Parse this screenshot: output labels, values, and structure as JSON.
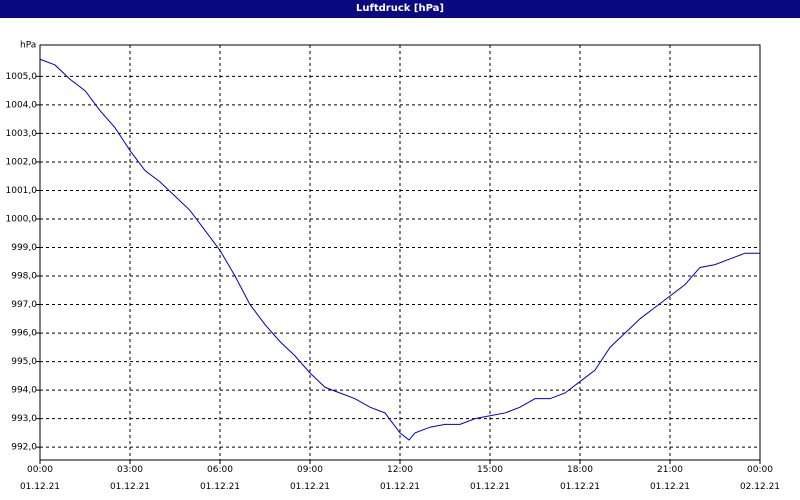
{
  "chart_data": {
    "type": "line",
    "title": "Luftdruck [hPa]",
    "y_label": "hPa",
    "x": [
      0,
      0.5,
      1,
      1.5,
      2,
      2.5,
      3,
      3.5,
      4,
      4.5,
      5,
      5.5,
      6,
      6.5,
      7,
      7.5,
      8,
      8.5,
      9,
      9.5,
      10,
      10.5,
      11,
      11.5,
      12,
      12.3,
      12.5,
      13,
      13.5,
      14,
      14.5,
      15,
      15.5,
      16,
      16.5,
      17,
      17.5,
      18,
      18.5,
      19,
      19.5,
      20,
      20.5,
      21,
      21.5,
      22,
      22.5,
      23,
      23.5,
      24
    ],
    "series": [
      {
        "name": "Luftdruck",
        "color": "#0000c0",
        "values": [
          1005.6,
          1005.4,
          1004.9,
          1004.5,
          1003.8,
          1003.2,
          1002.4,
          1001.7,
          1001.3,
          1000.8,
          1000.3,
          999.6,
          998.9,
          998.0,
          997.0,
          996.3,
          995.7,
          995.2,
          994.6,
          994.1,
          993.9,
          993.7,
          993.4,
          993.2,
          992.5,
          992.25,
          992.5,
          992.7,
          992.8,
          992.8,
          993.0,
          993.1,
          993.2,
          993.4,
          993.7,
          993.7,
          993.9,
          994.3,
          994.7,
          995.5,
          996.0,
          996.5,
          996.9,
          997.3,
          997.7,
          998.3,
          998.4,
          998.6,
          998.8,
          998.8
        ]
      }
    ],
    "xlim": [
      0,
      24
    ],
    "xticks": [
      {
        "value": 0,
        "label": "00:00\n01.12.21"
      },
      {
        "value": 3,
        "label": "03:00\n01.12.21"
      },
      {
        "value": 6,
        "label": "06:00\n01.12.21"
      },
      {
        "value": 9,
        "label": "09:00\n01.12.21"
      },
      {
        "value": 12,
        "label": "12:00\n01.12.21"
      },
      {
        "value": 15,
        "label": "15:00\n01.12.21"
      },
      {
        "value": 18,
        "label": "18:00\n01.12.21"
      },
      {
        "value": 21,
        "label": "21:00\n01.12.21"
      },
      {
        "value": 24,
        "label": "00:00\n02.12.21"
      }
    ],
    "ylim": [
      991.55,
      1006.1
    ],
    "yticks": [
      {
        "value": 992,
        "label": "992,0"
      },
      {
        "value": 993,
        "label": "993,0"
      },
      {
        "value": 994,
        "label": "994,0"
      },
      {
        "value": 995,
        "label": "995,0"
      },
      {
        "value": 996,
        "label": "996,0"
      },
      {
        "value": 997,
        "label": "997,0"
      },
      {
        "value": 998,
        "label": "998,0"
      },
      {
        "value": 999,
        "label": "999,0"
      },
      {
        "value": 1000,
        "label": "1000,0"
      },
      {
        "value": 1001,
        "label": "1001,0"
      },
      {
        "value": 1002,
        "label": "1002,0"
      },
      {
        "value": 1003,
        "label": "1003,0"
      },
      {
        "value": 1004,
        "label": "1004,0"
      },
      {
        "value": 1005,
        "label": "1005,0"
      }
    ],
    "grid": true
  }
}
